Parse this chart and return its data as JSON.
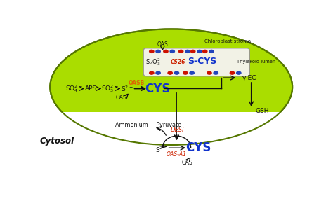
{
  "bg_color": "#ffffff",
  "chloroplast_fill": "#aadd00",
  "chloroplast_edge": "#557700",
  "thylakoid_fill": "#f2f2e6",
  "thylakoid_edge": "#999988",
  "text_black": "#111111",
  "text_red": "#cc2200",
  "text_blue": "#1133cc",
  "text_orange": "#dd6600",
  "arrow_color": "#111111",
  "red_dot": "#cc1100",
  "blue_dot": "#2244bb",
  "cytosol_label": "Cytosol",
  "chloro_stroma_label": "Chloroplast stroma",
  "thylakoid_label": "Thylakoid lumen",
  "oas_label": "OAS",
  "aps_label": "APS",
  "cys_label": "CYS",
  "scys_label": "S-CYS",
  "gsh_label": "GSH",
  "oasb_label": "OASB",
  "oasa1_label": "OAS-A1",
  "cs26_label": "CS26",
  "desi_label": "DESI",
  "ammon_label": "Ammonium + Pyruvate",
  "gec_label": "γ-EC"
}
